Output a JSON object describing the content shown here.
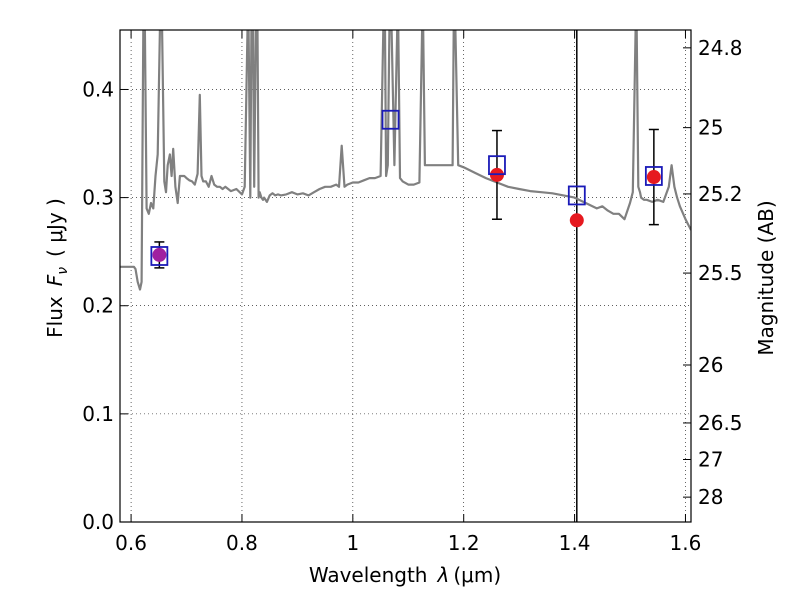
{
  "chart_data": {
    "type": "scatter",
    "xlabel_prefix": "Wavelength",
    "xlabel_lambda": "λ",
    "xlabel_unit": "(μm)",
    "ylabel_prefix": "Flux",
    "ylabel_unit": "( μJy )",
    "ylabel_sym": "F",
    "ylabel_sub": "ν",
    "ylabel_right": "Magnitude (AB)",
    "xlim": [
      0.58,
      1.61
    ],
    "ylim": [
      0.0,
      0.455
    ],
    "grid": true,
    "grid_style": "dotted",
    "xticks": [
      0.6,
      0.8,
      1.0,
      1.2,
      1.4,
      1.6
    ],
    "xtick_labels": [
      "0.6",
      "0.8",
      "1",
      "1.2",
      "1.4",
      "1.6"
    ],
    "yticks": [
      0.0,
      0.1,
      0.2,
      0.3,
      0.4
    ],
    "ytick_labels": [
      "0.0",
      "0.1",
      "0.2",
      "0.3",
      "0.4"
    ],
    "right_ticks": [
      {
        "label": "24.8",
        "flux": 0.4385
      },
      {
        "label": "25",
        "flux": 0.3647
      },
      {
        "label": "25.2",
        "flux": 0.3034
      },
      {
        "label": "25.5",
        "flux": 0.2302
      },
      {
        "label": "26",
        "flux": 0.1452
      },
      {
        "label": "26.5",
        "flux": 0.0916
      },
      {
        "label": "27",
        "flux": 0.0578
      },
      {
        "label": "28",
        "flux": 0.023
      }
    ],
    "vertical_line_x": 1.404,
    "colors": {
      "model": "#808080",
      "photometry": "#e6191f",
      "model_band": "#1a1ab8",
      "first_point_fill": "#a020a0",
      "errorbar": "#000000",
      "vline": "#000000"
    },
    "model_spectrum": {
      "x": [
        0.58,
        0.605,
        0.608,
        0.612,
        0.616,
        0.619,
        0.622,
        0.625,
        0.628,
        0.632,
        0.636,
        0.64,
        0.644,
        0.648,
        0.652,
        0.656,
        0.66,
        0.663,
        0.666,
        0.67,
        0.673,
        0.676,
        0.68,
        0.684,
        0.688,
        0.692,
        0.696,
        0.7,
        0.705,
        0.71,
        0.715,
        0.72,
        0.724,
        0.727,
        0.73,
        0.735,
        0.74,
        0.745,
        0.75,
        0.755,
        0.76,
        0.765,
        0.77,
        0.78,
        0.79,
        0.8,
        0.805,
        0.81,
        0.812,
        0.815,
        0.817,
        0.82,
        0.822,
        0.825,
        0.828,
        0.83,
        0.832,
        0.835,
        0.838,
        0.84,
        0.845,
        0.85,
        0.855,
        0.86,
        0.865,
        0.87,
        0.88,
        0.89,
        0.9,
        0.91,
        0.92,
        0.93,
        0.94,
        0.95,
        0.96,
        0.97,
        0.975,
        0.98,
        0.985,
        0.99,
        1.0,
        1.01,
        1.02,
        1.03,
        1.04,
        1.05,
        1.055,
        1.058,
        1.06,
        1.063,
        1.066,
        1.07,
        1.075,
        1.08,
        1.082,
        1.085,
        1.09,
        1.1,
        1.11,
        1.12,
        1.125,
        1.127,
        1.13,
        1.14,
        1.15,
        1.16,
        1.17,
        1.18,
        1.182,
        1.185,
        1.19,
        1.2,
        1.22,
        1.24,
        1.26,
        1.28,
        1.3,
        1.32,
        1.34,
        1.36,
        1.38,
        1.4,
        1.42,
        1.44,
        1.45,
        1.46,
        1.47,
        1.48,
        1.49,
        1.5,
        1.505,
        1.51,
        1.512,
        1.515,
        1.518,
        1.52,
        1.525,
        1.53,
        1.54,
        1.55,
        1.56,
        1.57,
        1.575,
        1.58,
        1.585,
        1.59,
        1.6,
        1.61
      ],
      "y": [
        0.236,
        0.236,
        0.234,
        0.222,
        0.215,
        0.222,
        0.455,
        0.455,
        0.29,
        0.285,
        0.295,
        0.29,
        0.32,
        0.34,
        0.455,
        0.455,
        0.315,
        0.305,
        0.33,
        0.34,
        0.32,
        0.345,
        0.31,
        0.295,
        0.32,
        0.32,
        0.32,
        0.318,
        0.316,
        0.315,
        0.312,
        0.322,
        0.395,
        0.32,
        0.315,
        0.315,
        0.31,
        0.32,
        0.312,
        0.31,
        0.31,
        0.308,
        0.31,
        0.306,
        0.308,
        0.303,
        0.31,
        0.455,
        0.455,
        0.3,
        0.455,
        0.455,
        0.31,
        0.455,
        0.455,
        0.3,
        0.305,
        0.3,
        0.298,
        0.3,
        0.296,
        0.302,
        0.304,
        0.302,
        0.303,
        0.302,
        0.303,
        0.305,
        0.303,
        0.304,
        0.302,
        0.305,
        0.308,
        0.31,
        0.31,
        0.312,
        0.31,
        0.348,
        0.31,
        0.312,
        0.314,
        0.314,
        0.316,
        0.318,
        0.318,
        0.32,
        0.455,
        0.455,
        0.32,
        0.33,
        0.455,
        0.455,
        0.33,
        0.455,
        0.455,
        0.318,
        0.315,
        0.312,
        0.312,
        0.314,
        0.455,
        0.455,
        0.33,
        0.33,
        0.33,
        0.33,
        0.33,
        0.33,
        0.455,
        0.455,
        0.33,
        0.328,
        0.323,
        0.318,
        0.314,
        0.31,
        0.308,
        0.306,
        0.305,
        0.304,
        0.302,
        0.3,
        0.295,
        0.29,
        0.292,
        0.288,
        0.285,
        0.285,
        0.28,
        0.295,
        0.305,
        0.455,
        0.455,
        0.31,
        0.305,
        0.3,
        0.298,
        0.298,
        0.296,
        0.298,
        0.296,
        0.31,
        0.33,
        0.31,
        0.3,
        0.292,
        0.28,
        0.27
      ]
    },
    "photometry": [
      {
        "x": 0.651,
        "y": 0.247,
        "yerr": 0.012
      },
      {
        "x": 1.26,
        "y": 0.321,
        "yerr": 0.041
      },
      {
        "x": 1.404,
        "y": 0.279,
        "yerr": null
      },
      {
        "x": 1.543,
        "y": 0.319,
        "yerr": 0.044
      }
    ],
    "model_bands": [
      {
        "x": 0.651,
        "y": 0.246
      },
      {
        "x": 1.068,
        "y": 0.372
      },
      {
        "x": 1.26,
        "y": 0.33
      },
      {
        "x": 1.404,
        "y": 0.302
      },
      {
        "x": 1.543,
        "y": 0.32
      }
    ]
  }
}
